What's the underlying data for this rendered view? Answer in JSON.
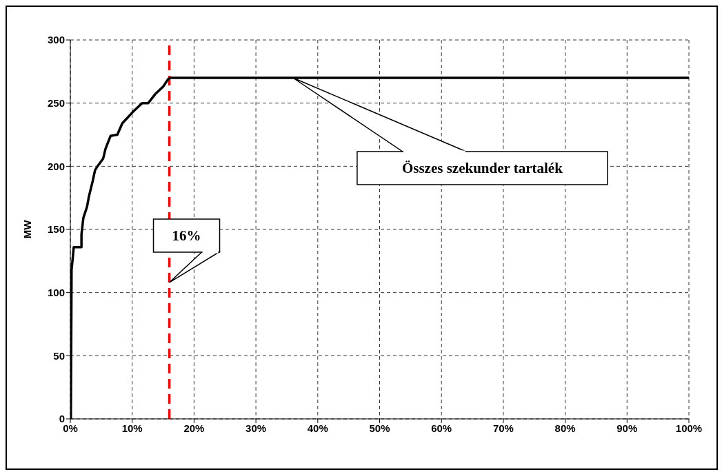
{
  "chart_data": {
    "type": "line",
    "ylabel": "MW",
    "x": [
      0.08,
      0.2,
      0.4,
      0.55,
      1.8,
      1.8,
      2.1,
      2.7,
      3.0,
      3.6,
      4.0,
      4.4,
      5.3,
      5.7,
      6.5,
      7.6,
      8.4,
      10.3,
      11.6,
      12.6,
      13.7,
      15.0,
      15.8,
      16.2,
      100
    ],
    "series": [
      {
        "color": "#000000",
        "values": [
          0,
          118,
          128,
          136,
          136,
          146,
          159,
          168,
          176,
          188,
          197,
          200,
          206,
          214,
          224,
          225,
          234,
          244,
          250,
          250,
          257,
          263,
          269,
          270,
          270
        ]
      }
    ],
    "xlim": [
      0,
      100
    ],
    "xticks": [
      {
        "value": 0,
        "label": "0%"
      },
      {
        "value": 10,
        "label": "10%"
      },
      {
        "value": 20,
        "label": "20%"
      },
      {
        "value": 30,
        "label": "30%"
      },
      {
        "value": 40,
        "label": "40%"
      },
      {
        "value": 50,
        "label": "50%"
      },
      {
        "value": 60,
        "label": "60%"
      },
      {
        "value": 70,
        "label": "70%"
      },
      {
        "value": 80,
        "label": "80%"
      },
      {
        "value": 90,
        "label": "90%"
      },
      {
        "value": 100,
        "label": "100%"
      }
    ],
    "ylim": [
      0,
      300
    ],
    "yticks": [
      0,
      50,
      100,
      150,
      200,
      250,
      300
    ],
    "grid": true,
    "ref_lines": [
      {
        "axis": "x",
        "value": 16,
        "label": null,
        "color": "#ff0000",
        "line_style": "dashed"
      }
    ],
    "annotations": [
      {
        "text": "16%",
        "x": 16,
        "y": 108
      },
      {
        "text": "Összes szekunder tartalék",
        "x": 36,
        "y": 270
      }
    ]
  }
}
